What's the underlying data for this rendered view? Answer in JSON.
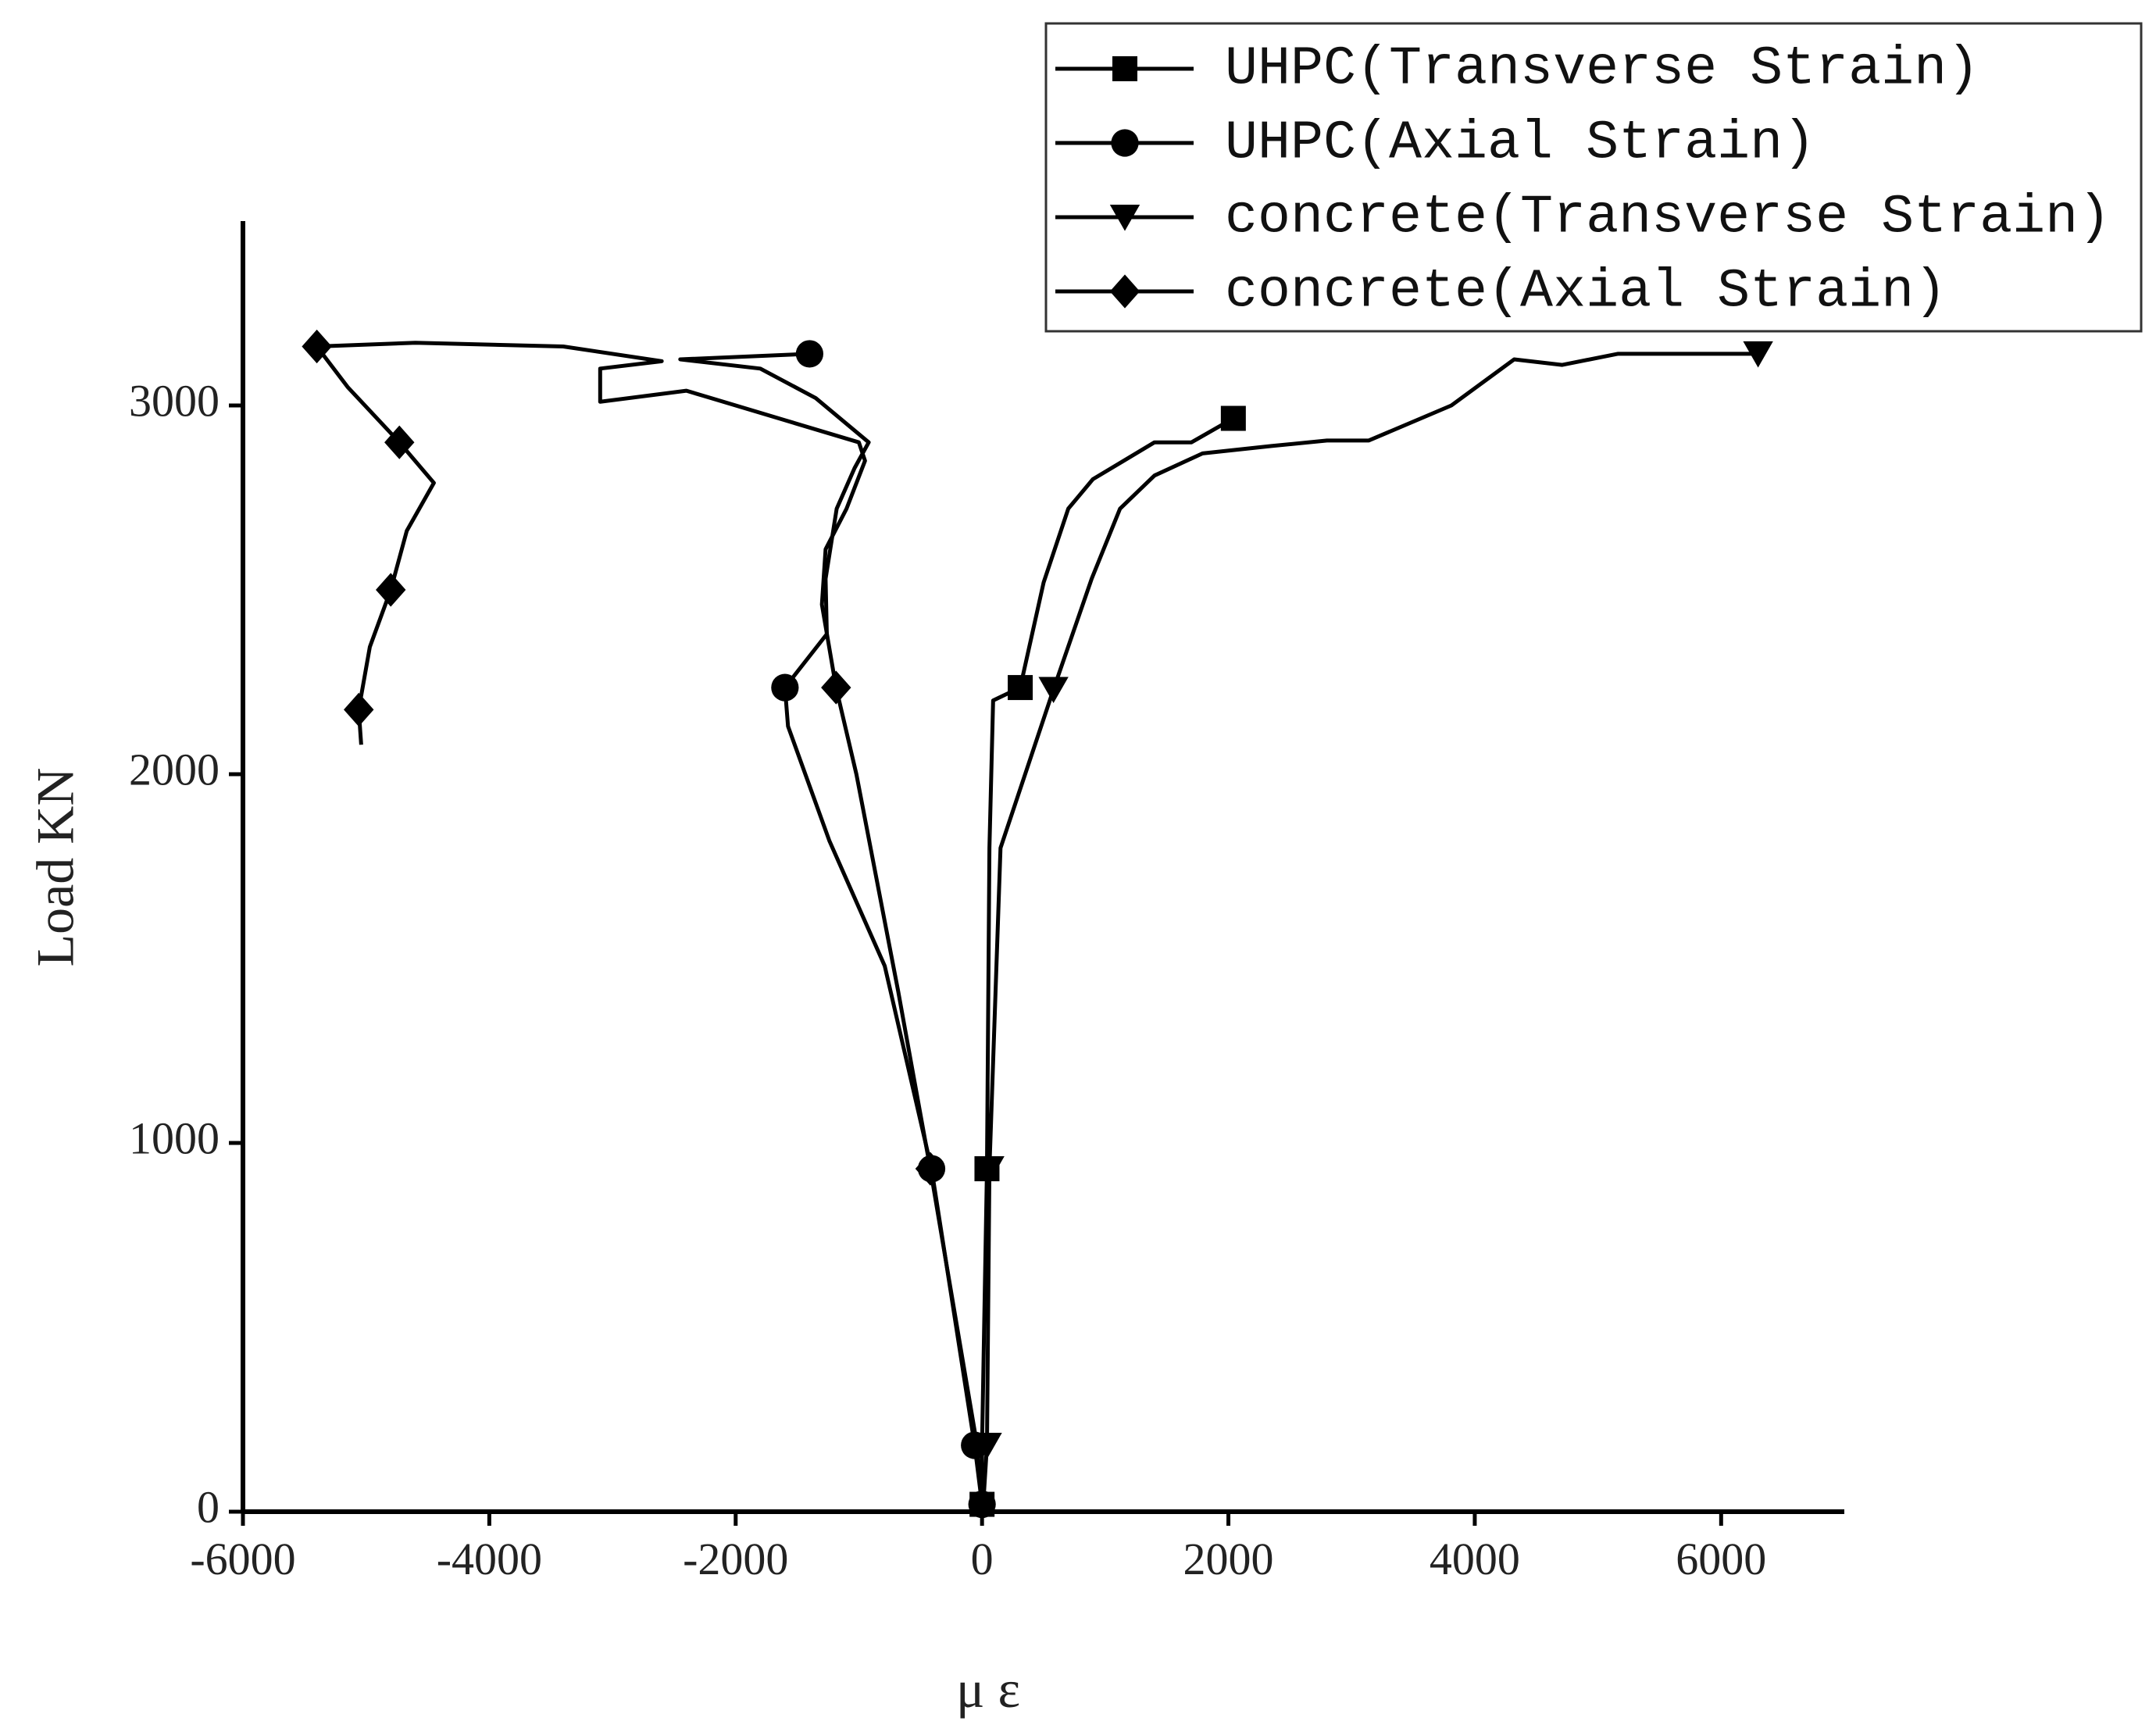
{
  "chart_data": {
    "type": "line",
    "x_label": "μ ε",
    "y_label": "Load KN",
    "xlim": [
      -6000,
      7000
    ],
    "ylim": [
      0,
      3500
    ],
    "xticks": [
      -6000,
      -4000,
      -2000,
      0,
      2000,
      4000,
      6000
    ],
    "yticks": [
      0,
      1000,
      2000,
      3000
    ],
    "legend": "top-right",
    "series": [
      {
        "name": "UHPC(Transverse Strain)",
        "color": "#000000",
        "marker": "square",
        "x": [
          0,
          0,
          40,
          60,
          90,
          310,
          500,
          700,
          900,
          1150,
          1400,
          1700,
          2040
        ],
        "values": [
          20,
          180,
          930,
          1800,
          2200,
          2235,
          2520,
          2720,
          2800,
          2850,
          2900,
          2900,
          2965
        ],
        "marker_indices": [
          0,
          2,
          5,
          12
        ]
      },
      {
        "name": "UHPC(Axial Strain)",
        "color": "#000000",
        "marker": "circle",
        "x": [
          0,
          -60,
          -410,
          -790,
          -1240,
          -1575,
          -1600,
          -1260,
          -1270,
          -1180,
          -1035,
          -920,
          -1350,
          -1800,
          -2450,
          -1400
        ],
        "values": [
          20,
          180,
          930,
          1480,
          1820,
          2130,
          2235,
          2380,
          2530,
          2720,
          2830,
          2900,
          3020,
          3100,
          3125,
          3140
        ],
        "marker_indices": [
          0,
          1,
          2,
          6,
          15
        ]
      },
      {
        "name": "concrete(Transverse Strain)",
        "color": "#000000",
        "marker": "triangle-down",
        "x": [
          10,
          40,
          60,
          150,
          580,
          890,
          1120,
          1400,
          1790,
          2350,
          2800,
          3140,
          3810,
          4320,
          4710,
          5160,
          6300
        ],
        "values": [
          20,
          180,
          930,
          1800,
          2230,
          2530,
          2720,
          2810,
          2870,
          2890,
          2905,
          2905,
          3000,
          3125,
          3110,
          3140,
          3140
        ],
        "marker_indices": [
          1,
          2,
          4,
          16
        ]
      },
      {
        "name": "concrete(Axial Strain)",
        "color": "#000000",
        "marker": "diamond",
        "x": [
          0,
          -40,
          -420,
          -680,
          -1020,
          -1185,
          -1300,
          -1270,
          -1100,
          -950,
          -1000,
          -1600,
          -2400,
          -3100,
          -3100,
          -2600,
          -3400,
          -4600,
          -5400,
          -5150,
          -4730,
          -4450,
          -4670,
          -4800,
          -4970,
          -5060,
          -5040
        ],
        "values": [
          20,
          180,
          930,
          1410,
          2000,
          2235,
          2460,
          2610,
          2720,
          2850,
          2900,
          2960,
          3040,
          3010,
          3100,
          3120,
          3160,
          3170,
          3160,
          3050,
          2900,
          2790,
          2660,
          2500,
          2345,
          2175,
          2080
        ],
        "marker_indices": [
          2,
          5,
          18,
          20,
          23,
          25
        ]
      }
    ]
  }
}
